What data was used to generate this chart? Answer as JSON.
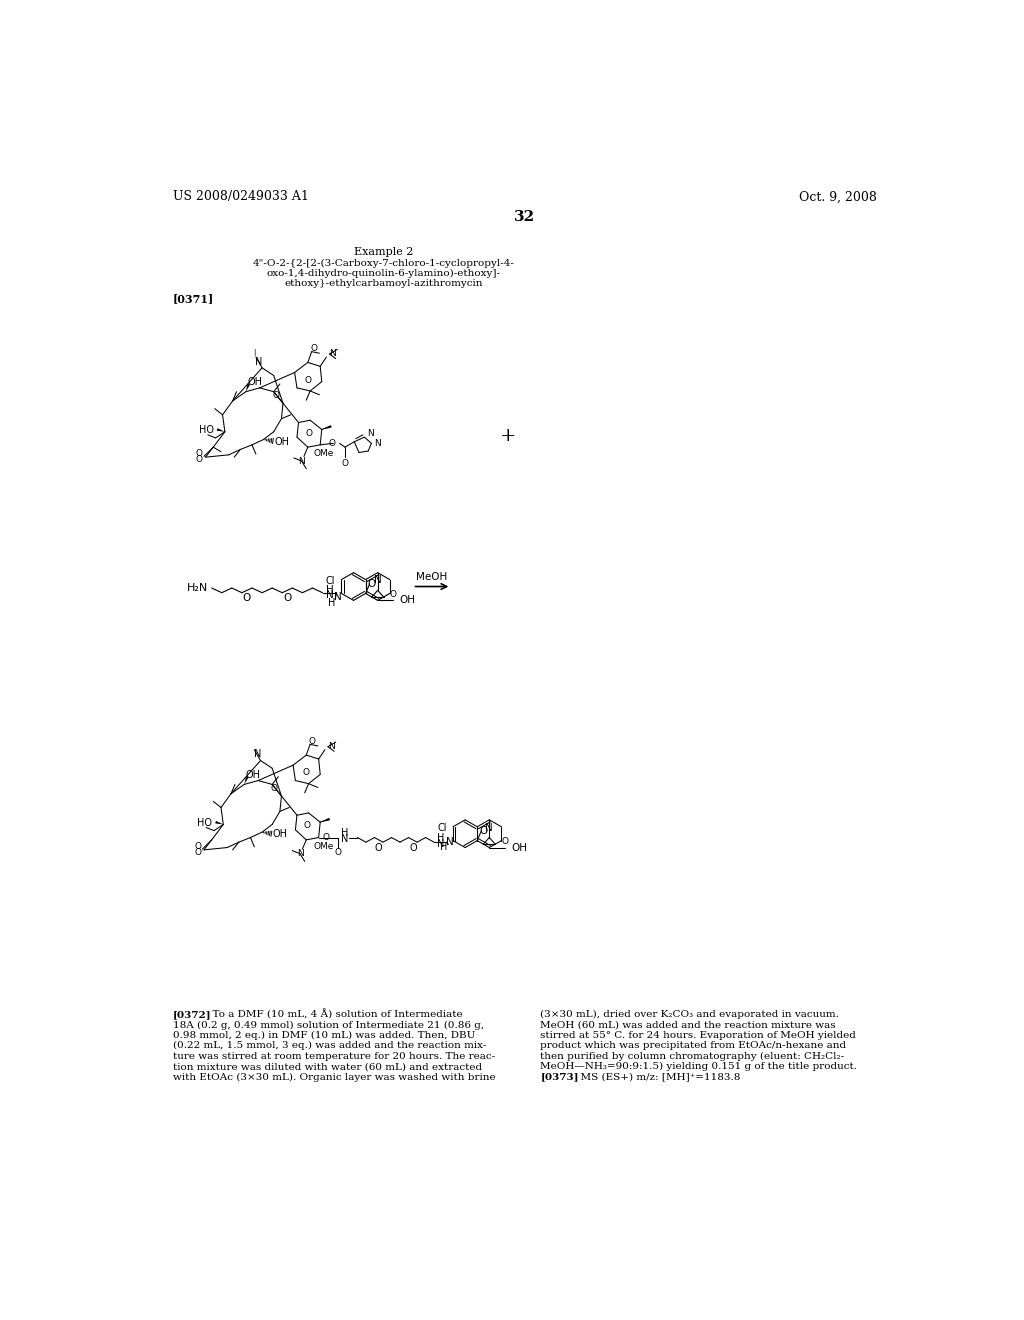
{
  "background_color": "#ffffff",
  "page_number": "32",
  "header_left": "US 2008/0249033 A1",
  "header_right": "Oct. 9, 2008",
  "example_title": "Example 2",
  "example_sub1": "4\"-O-2-{2-[2-(3-Carboxy-7-chloro-1-cyclopropyl-4-",
  "example_sub2": "oxo-1,4-dihydro-quinolin-6-ylamino)-ethoxy]-",
  "example_sub3": "ethoxy}-ethylcarbamoyl-azithromycin",
  "label0371": "[0371]",
  "label0372": "[0372]",
  "label0373": "[0373]",
  "plus_sign": "+",
  "meoh_label": "MeOH",
  "para_left": [
    "[0372]   To a DMF (10 mL, 4 Å) solution of Intermediate",
    "18A (0.2 g, 0.49 mmol) solution of Intermediate 21 (0.86 g,",
    "0.98 mmol, 2 eq.) in DMF (10 mL) was added. Then, DBU",
    "(0.22 mL, 1.5 mmol, 3 eq.) was added and the reaction mix-",
    "ture was stirred at room temperature for 20 hours. The reac-",
    "tion mixture was diluted with water (60 mL) and extracted",
    "with EtOAc (3×30 mL). Organic layer was washed with brine"
  ],
  "para_right": [
    "(3×30 mL), dried over K₂CO₃ and evaporated in vacuum.",
    "MeOH (60 mL) was added and the reaction mixture was",
    "stirred at 55° C. for 24 hours. Evaporation of MeOH yielded",
    "product which was precipitated from EtOAc/n-hexane and",
    "then purified by column chromatography (eluent: CH₂Cl₂-",
    "MeOH—NH₃=90:9:1.5) yielding 0.151 g of the title product.",
    "[0373]   MS (ES+) m/z: [MH]⁺=1183.8"
  ]
}
